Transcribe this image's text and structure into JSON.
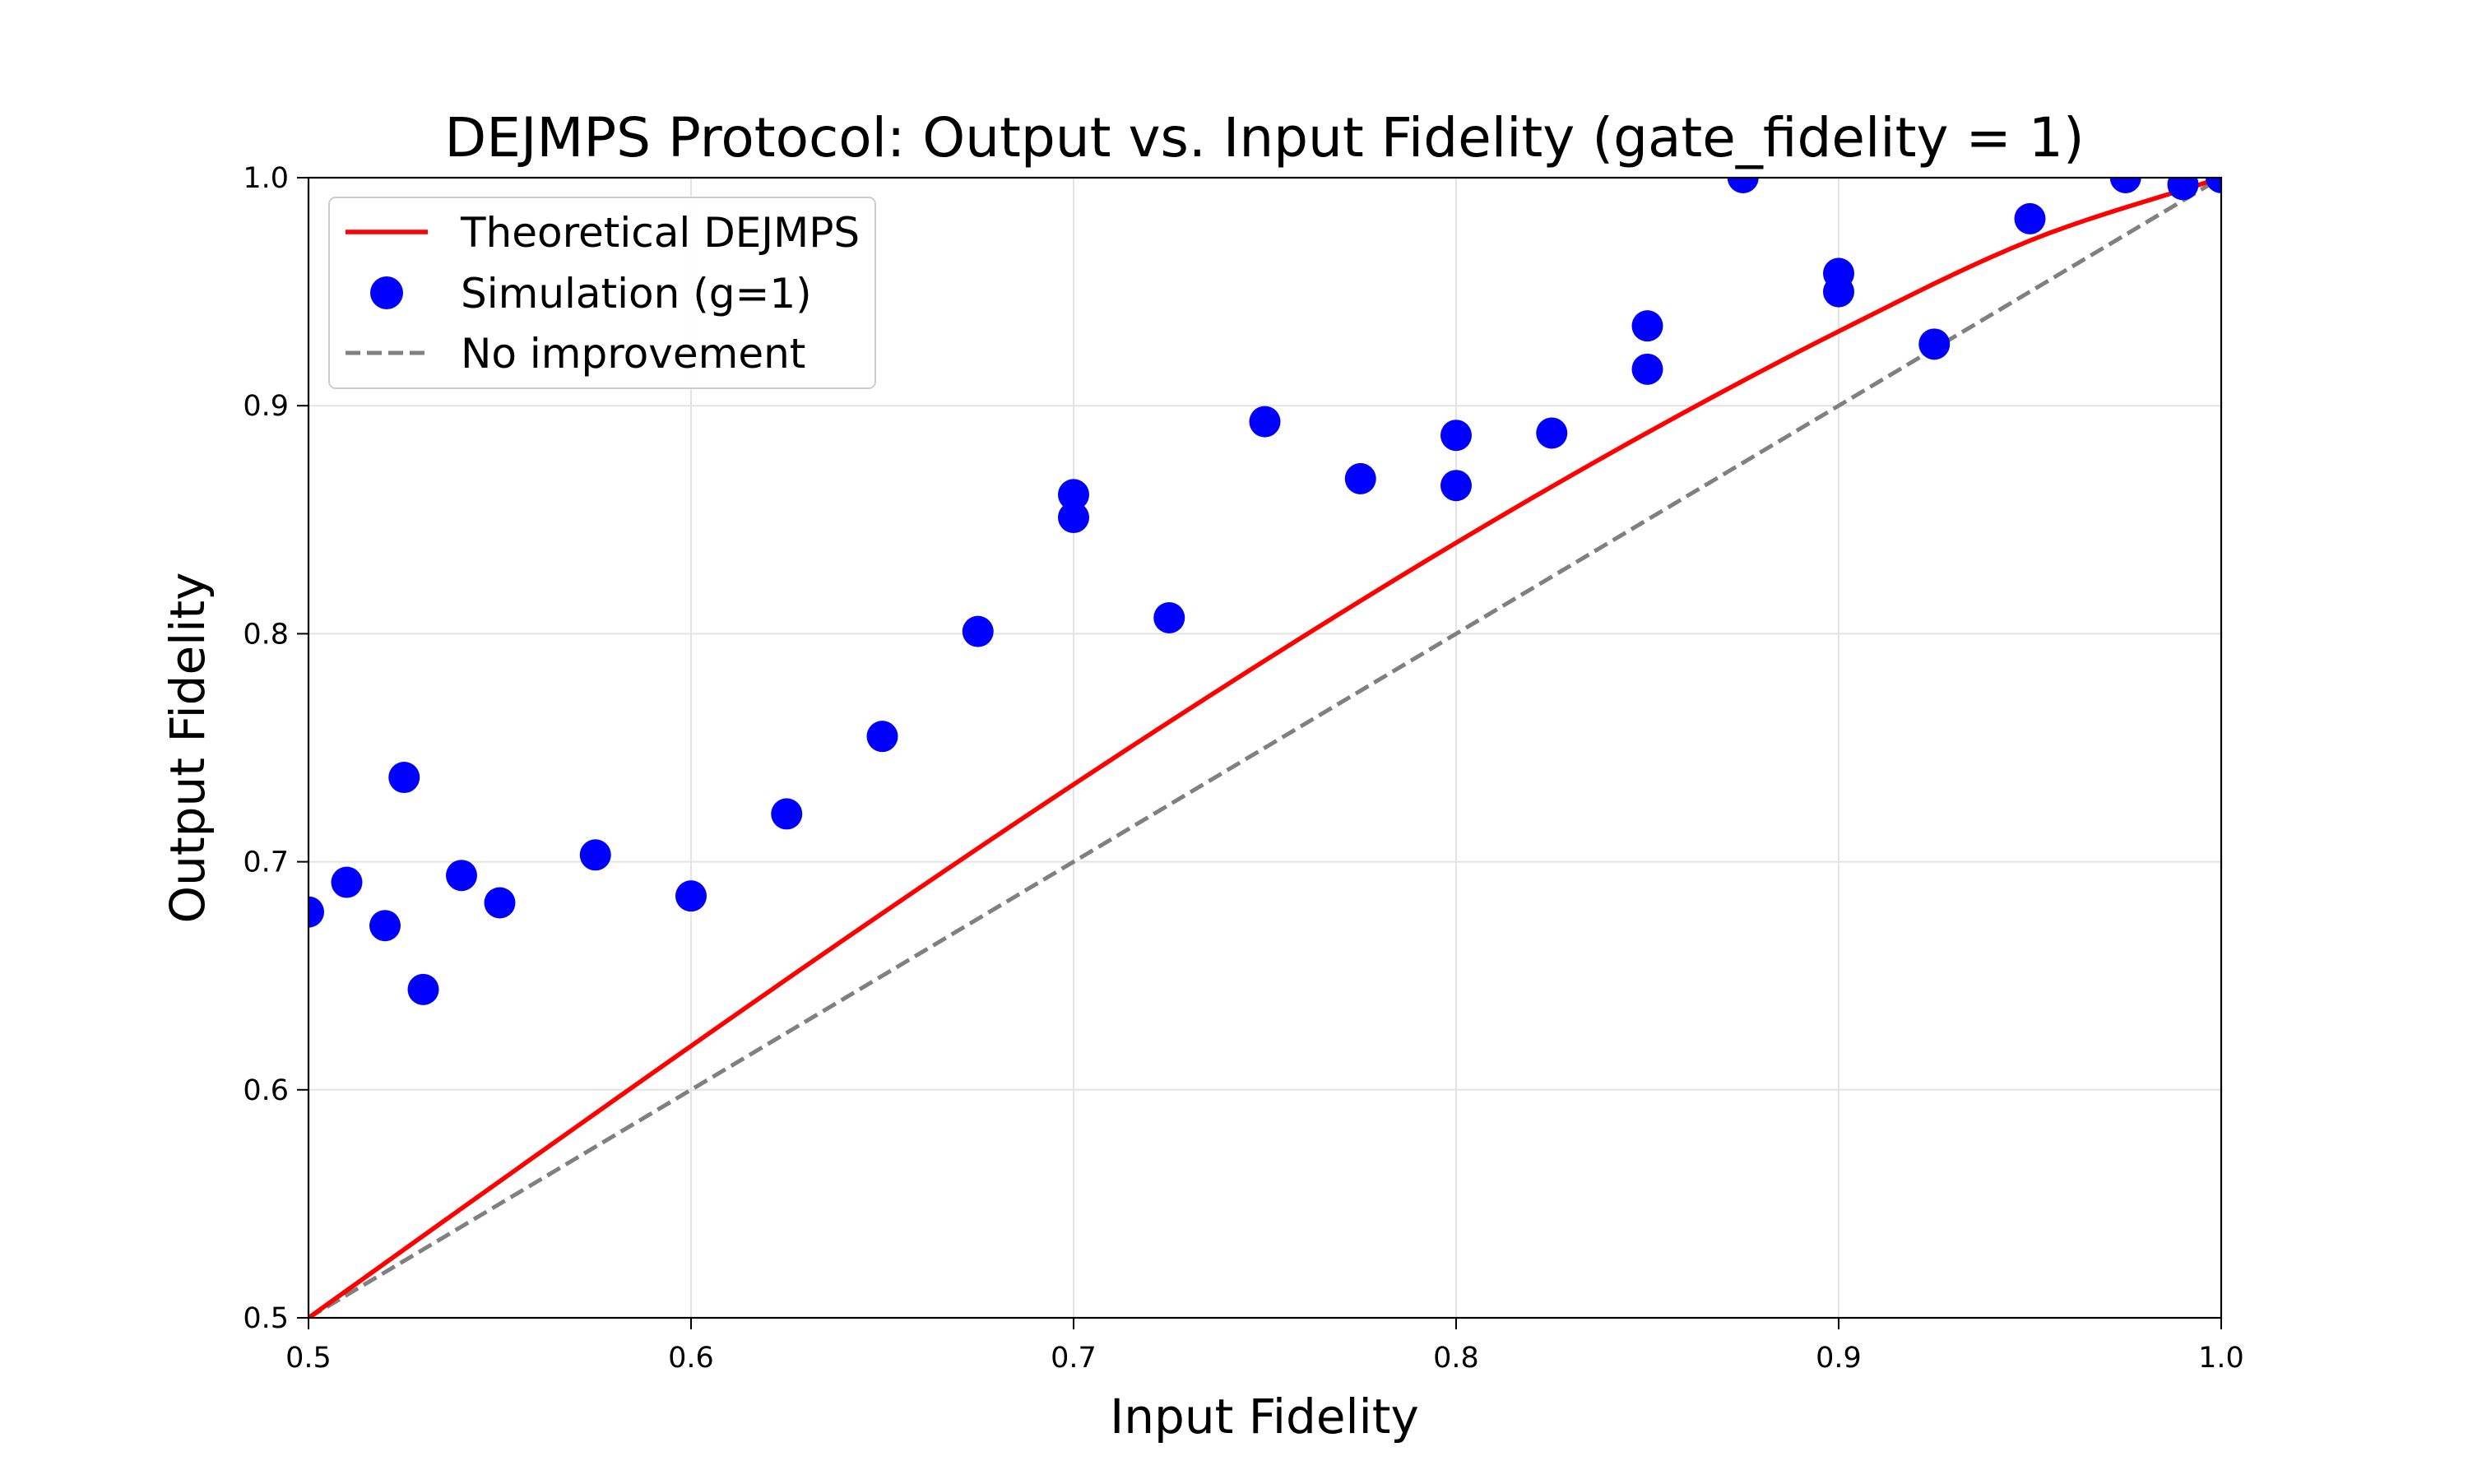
{
  "chart_data": {
    "type": "scatter",
    "title": "DEJMPS Protocol: Output vs. Input Fidelity (gate_fidelity = 1)",
    "xlabel": "Input Fidelity",
    "ylabel": "Output Fidelity",
    "xlim": [
      0.5,
      1.0
    ],
    "ylim": [
      0.5,
      1.0
    ],
    "xticks": [
      0.5,
      0.6,
      0.7,
      0.8,
      0.9,
      1.0
    ],
    "yticks": [
      0.5,
      0.6,
      0.7,
      0.8,
      0.9,
      1.0
    ],
    "xtick_labels": [
      "0.5",
      "0.6",
      "0.7",
      "0.8",
      "0.9",
      "1.0"
    ],
    "ytick_labels": [
      "0.5",
      "0.6",
      "0.7",
      "0.8",
      "0.9",
      "1.0"
    ],
    "grid": true,
    "legend_position": "upper-left",
    "series": [
      {
        "name": "Theoretical DEJMPS",
        "kind": "line",
        "style": "solid",
        "color": "#ff0000",
        "x": [
          0.5,
          0.55,
          0.6,
          0.65,
          0.7,
          0.75,
          0.8,
          0.85,
          0.9,
          0.95,
          1.0
        ],
        "y": [
          0.5,
          0.5599,
          0.6192,
          0.6774,
          0.7339,
          0.7882,
          0.8399,
          0.8882,
          0.9326,
          0.9724,
          1.0
        ]
      },
      {
        "name": "Simulation (g=1)",
        "kind": "scatter",
        "color": "#0000ff",
        "x": [
          0.5,
          0.51,
          0.52,
          0.525,
          0.53,
          0.54,
          0.55,
          0.575,
          0.6,
          0.625,
          0.65,
          0.675,
          0.7,
          0.7,
          0.725,
          0.75,
          0.775,
          0.8,
          0.8,
          0.825,
          0.85,
          0.85,
          0.875,
          0.9,
          0.9,
          0.925,
          0.95,
          0.975,
          0.99,
          1.0
        ],
        "y": [
          0.678,
          0.691,
          0.672,
          0.737,
          0.644,
          0.694,
          0.682,
          0.703,
          0.685,
          0.721,
          0.755,
          0.801,
          0.861,
          0.851,
          0.807,
          0.893,
          0.868,
          0.887,
          0.865,
          0.888,
          0.935,
          0.916,
          1.0,
          0.958,
          0.95,
          0.927,
          0.982,
          1.0,
          0.997,
          1.0
        ]
      },
      {
        "name": "No improvement",
        "kind": "line",
        "style": "dashed",
        "color": "#808080",
        "x": [
          0.5,
          1.0
        ],
        "y": [
          0.5,
          1.0
        ]
      }
    ]
  }
}
